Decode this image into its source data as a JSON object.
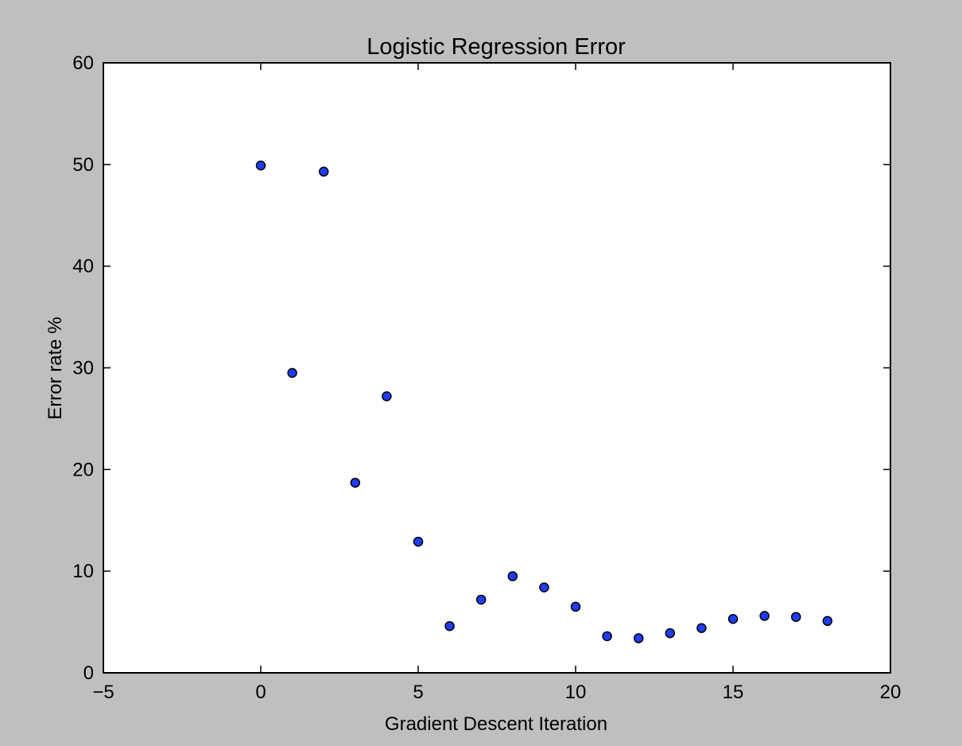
{
  "chart_data": {
    "type": "scatter",
    "title": "Logistic Regression Error",
    "xlabel": "Gradient Descent Iteration",
    "ylabel": "Error rate %",
    "xlim": [
      -5,
      20
    ],
    "ylim": [
      0,
      60
    ],
    "xticks": [
      -5,
      0,
      5,
      10,
      15,
      20
    ],
    "yticks": [
      0,
      10,
      20,
      30,
      40,
      50,
      60
    ],
    "xtick_labels": [
      "−5",
      "0",
      "5",
      "10",
      "15",
      "20"
    ],
    "ytick_labels": [
      "0",
      "10",
      "20",
      "30",
      "40",
      "50",
      "60"
    ],
    "grid": false,
    "legend": false,
    "series": [
      {
        "x": [
          0,
          1,
          2,
          3,
          4,
          5,
          6,
          7,
          8,
          9,
          10,
          11,
          12,
          13,
          14,
          15,
          16,
          17,
          18
        ],
        "y": [
          49.9,
          29.5,
          49.3,
          18.7,
          27.2,
          12.9,
          4.6,
          7.2,
          9.5,
          8.4,
          6.5,
          3.6,
          3.4,
          3.9,
          4.4,
          5.3,
          5.6,
          5.5,
          5.1
        ],
        "color": "#1f3cff"
      }
    ]
  },
  "colors": {
    "background": "#bfbfbf",
    "plot_area": "#ffffff",
    "marker_fill": "#1f3cff",
    "marker_edge": "#000000"
  }
}
